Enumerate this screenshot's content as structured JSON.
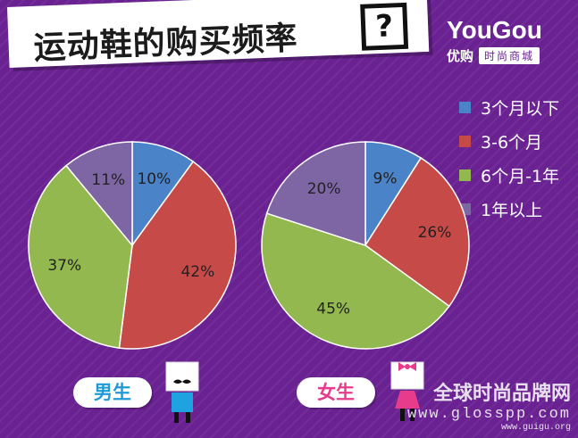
{
  "title": "运动鞋的购买频率",
  "title_mark": "?",
  "brand": {
    "name": "YouGou",
    "cn_name": "优购",
    "tagline": "时尚商城"
  },
  "legend": [
    {
      "label": "3个月以下",
      "color": "#4a83c7"
    },
    {
      "label": "3-6个月",
      "color": "#c64a47"
    },
    {
      "label": "6个月-1年",
      "color": "#93b84f"
    },
    {
      "label": "1年以上",
      "color": "#7e65a3"
    }
  ],
  "chart_data": [
    {
      "type": "pie",
      "group": "男生",
      "categories": [
        "3个月以下",
        "3-6个月",
        "6个月-1年",
        "1年以上"
      ],
      "values": [
        10,
        42,
        37,
        11
      ],
      "labels": [
        "10%",
        "42%",
        "37%",
        "11%"
      ]
    },
    {
      "type": "pie",
      "group": "女生",
      "categories": [
        "3个月以下",
        "3-6个月",
        "6个月-1年",
        "1年以上"
      ],
      "values": [
        9,
        26,
        45,
        20
      ],
      "labels": [
        "9%",
        "26%",
        "45%",
        "20%"
      ]
    }
  ],
  "badges": {
    "male": "男生",
    "female": "女生"
  },
  "watermark": {
    "cn": "全球时尚品牌网",
    "url": "www.glosspp.com",
    "url2": "www.guigu.org"
  }
}
